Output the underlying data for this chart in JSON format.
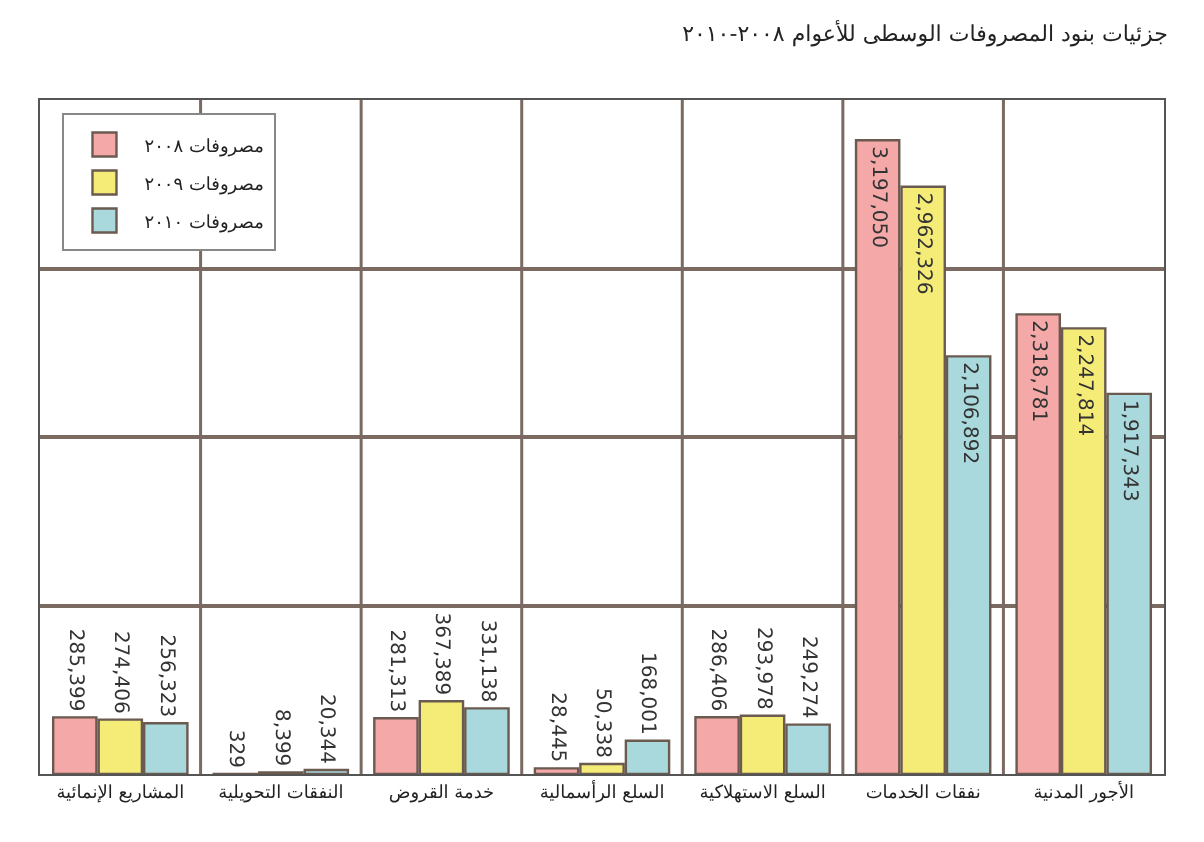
{
  "chart_data": {
    "type": "bar",
    "title": "جزئيات بنود المصروفات الوسطى للأعوام ٢٠٠٨-٢٠١٠",
    "categories": [
      "المشاريع الإنمائية",
      "النفقات التحويلية",
      "خدمة القروض",
      "السلع الرأسمالية",
      "السلع الاستهلاكية",
      "نفقات الخدمات",
      "الأجور المدنية"
    ],
    "series": [
      {
        "name": "مصروفات ٢٠٠٨",
        "color": "#f4a9a8",
        "values": [
          285399,
          329,
          281313,
          28445,
          286406,
          3197050,
          2318781
        ],
        "value_labels": [
          "285,399",
          "329",
          "281,313",
          "28,445",
          "286,406",
          "3,197,050",
          "2,318,781"
        ]
      },
      {
        "name": "مصروفات ٢٠٠٩",
        "color": "#f5ec78",
        "values": [
          274406,
          8399,
          367389,
          50338,
          293978,
          2962326,
          2247814
        ],
        "value_labels": [
          "274,406",
          "8,399",
          "367,389",
          "50,338",
          "293,978",
          "2,962,326",
          "2,247,814"
        ]
      },
      {
        "name": "مصروفات ٢٠١٠",
        "color": "#a9d9dc",
        "values": [
          256323,
          20344,
          331138,
          168001,
          249274,
          2106892,
          1917343
        ],
        "value_labels": [
          "256,323",
          "20,344",
          "331,138",
          "168,001",
          "249,274",
          "2,106,892",
          "1,917,343"
        ]
      }
    ],
    "ylim": [
      0,
      3400000
    ],
    "yticks": [
      {
        "value": 0,
        "label": null
      },
      {
        "value": 850000,
        "label": null
      },
      {
        "value": 1700000,
        "label": null
      },
      {
        "value": 2550000,
        "label": null
      },
      {
        "value": 3400000,
        "label": null
      }
    ],
    "tick_labels": "x",
    "grid": true,
    "legend": "top left"
  }
}
